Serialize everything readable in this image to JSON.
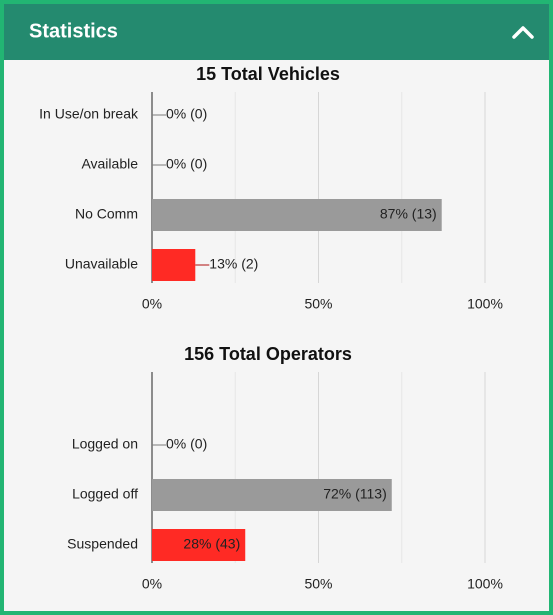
{
  "header": {
    "title": "Statistics"
  },
  "chart_data": [
    {
      "type": "barh",
      "title": "15 Total Vehicles",
      "categories": [
        "In Use/on break",
        "Available",
        "No Comm",
        "Unavailable"
      ],
      "values": [
        0,
        0,
        87,
        13
      ],
      "value_labels": [
        "0% (0)",
        "0% (0)",
        "87% (13)",
        "13% (2)"
      ],
      "colors": [
        "#9a9a9a",
        "#9a9a9a",
        "#9a9a9a",
        "#ff2a24"
      ],
      "xlim": [
        0,
        100
      ],
      "xticks": [
        {
          "value": 0,
          "label": "0%"
        },
        {
          "value": 50,
          "label": "50%"
        },
        {
          "value": 100,
          "label": "100%"
        }
      ],
      "xminor": [
        25,
        75
      ],
      "grid": true
    },
    {
      "type": "barh",
      "title": "156 Total Operators",
      "categories": [
        "Logged on",
        "Logged off",
        "Suspended"
      ],
      "values": [
        0,
        72,
        28
      ],
      "value_labels": [
        "0% (0)",
        "72% (113)",
        "28% (43)"
      ],
      "colors": [
        "#9a9a9a",
        "#9a9a9a",
        "#ff2a24"
      ],
      "xlim": [
        0,
        100
      ],
      "xticks": [
        {
          "value": 0,
          "label": "0%"
        },
        {
          "value": 50,
          "label": "50%"
        },
        {
          "value": 100,
          "label": "100%"
        }
      ],
      "xminor": [
        25,
        75
      ],
      "grid": true
    }
  ]
}
